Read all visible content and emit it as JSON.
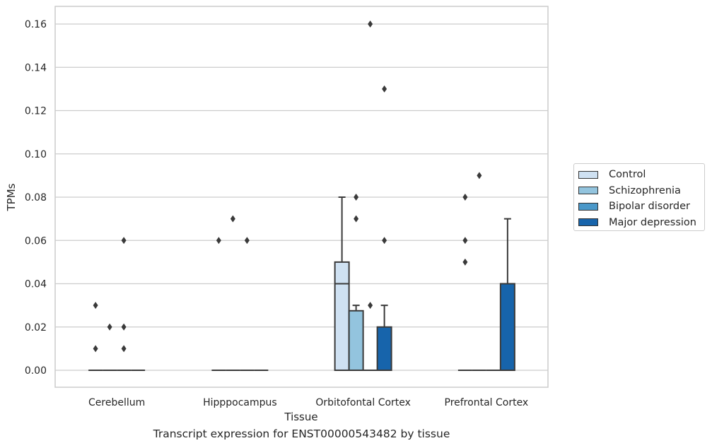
{
  "chart_data": {
    "type": "box",
    "xlabel": "Tissue",
    "ylabel": "TPMs",
    "caption": "Transcript expression for ENST00000543482 by tissue",
    "ylim": [
      -0.008,
      0.168
    ],
    "yticks": [
      0.0,
      0.02,
      0.04,
      0.06,
      0.08,
      0.1,
      0.12,
      0.14,
      0.16
    ],
    "ytick_labels": [
      "0.00",
      "0.02",
      "0.04",
      "0.06",
      "0.08",
      "0.10",
      "0.12",
      "0.14",
      "0.16"
    ],
    "grid": "horizontal",
    "legend_position": "outside-right",
    "categories": [
      "Cerebellum",
      "Hipppocampus",
      "Orbitofontal Cortex",
      "Prefrontal Cortex"
    ],
    "series": [
      {
        "name": "Control",
        "color": "#cfe1f2",
        "boxes": [
          {
            "q1": 0,
            "median": 0,
            "q3": 0,
            "whislo": 0,
            "whishi": 0,
            "fliers": [
              0.03,
              0.01
            ]
          },
          {
            "q1": 0,
            "median": 0,
            "q3": 0,
            "whislo": 0,
            "whishi": 0,
            "fliers": [
              0.06
            ]
          },
          {
            "q1": 0,
            "median": 0.04,
            "q3": 0.05,
            "whislo": 0,
            "whishi": 0.08,
            "fliers": []
          },
          {
            "q1": 0,
            "median": 0,
            "q3": 0,
            "whislo": 0,
            "whishi": 0,
            "fliers": [
              0.08,
              0.06,
              0.05
            ]
          }
        ]
      },
      {
        "name": "Schizophrenia",
        "color": "#93c4de",
        "boxes": [
          {
            "q1": 0,
            "median": 0,
            "q3": 0,
            "whislo": 0,
            "whishi": 0,
            "fliers": [
              0.02
            ]
          },
          {
            "q1": 0,
            "median": 0,
            "q3": 0,
            "whislo": 0,
            "whishi": 0,
            "fliers": [
              0.07
            ]
          },
          {
            "q1": 0,
            "median": 0,
            "q3": 0.0275,
            "whislo": 0,
            "whishi": 0.03,
            "fliers": [
              0.08,
              0.07
            ]
          },
          {
            "q1": 0,
            "median": 0,
            "q3": 0,
            "whislo": 0,
            "whishi": 0,
            "fliers": [
              0.09
            ]
          }
        ]
      },
      {
        "name": "Bipolar disorder",
        "color": "#4a98c9",
        "boxes": [
          {
            "q1": 0,
            "median": 0,
            "q3": 0,
            "whislo": 0,
            "whishi": 0,
            "fliers": [
              0.06,
              0.02,
              0.01
            ]
          },
          {
            "q1": 0,
            "median": 0,
            "q3": 0,
            "whislo": 0,
            "whishi": 0,
            "fliers": [
              0.06
            ]
          },
          {
            "q1": 0,
            "median": 0,
            "q3": 0,
            "whislo": 0,
            "whishi": 0,
            "fliers": [
              0.16,
              0.03
            ]
          },
          {
            "q1": 0,
            "median": 0,
            "q3": 0,
            "whislo": 0,
            "whishi": 0,
            "fliers": []
          }
        ]
      },
      {
        "name": "Major depression",
        "color": "#1764ab",
        "boxes": [
          {
            "q1": 0,
            "median": 0,
            "q3": 0,
            "whislo": 0,
            "whishi": 0,
            "fliers": []
          },
          {
            "q1": 0,
            "median": 0,
            "q3": 0,
            "whislo": 0,
            "whishi": 0,
            "fliers": []
          },
          {
            "q1": 0,
            "median": 0,
            "q3": 0.02,
            "whislo": 0,
            "whishi": 0.03,
            "fliers": [
              0.13,
              0.06
            ]
          },
          {
            "q1": 0,
            "median": 0,
            "q3": 0.04,
            "whislo": 0,
            "whishi": 0.07,
            "fliers": []
          }
        ]
      }
    ]
  }
}
